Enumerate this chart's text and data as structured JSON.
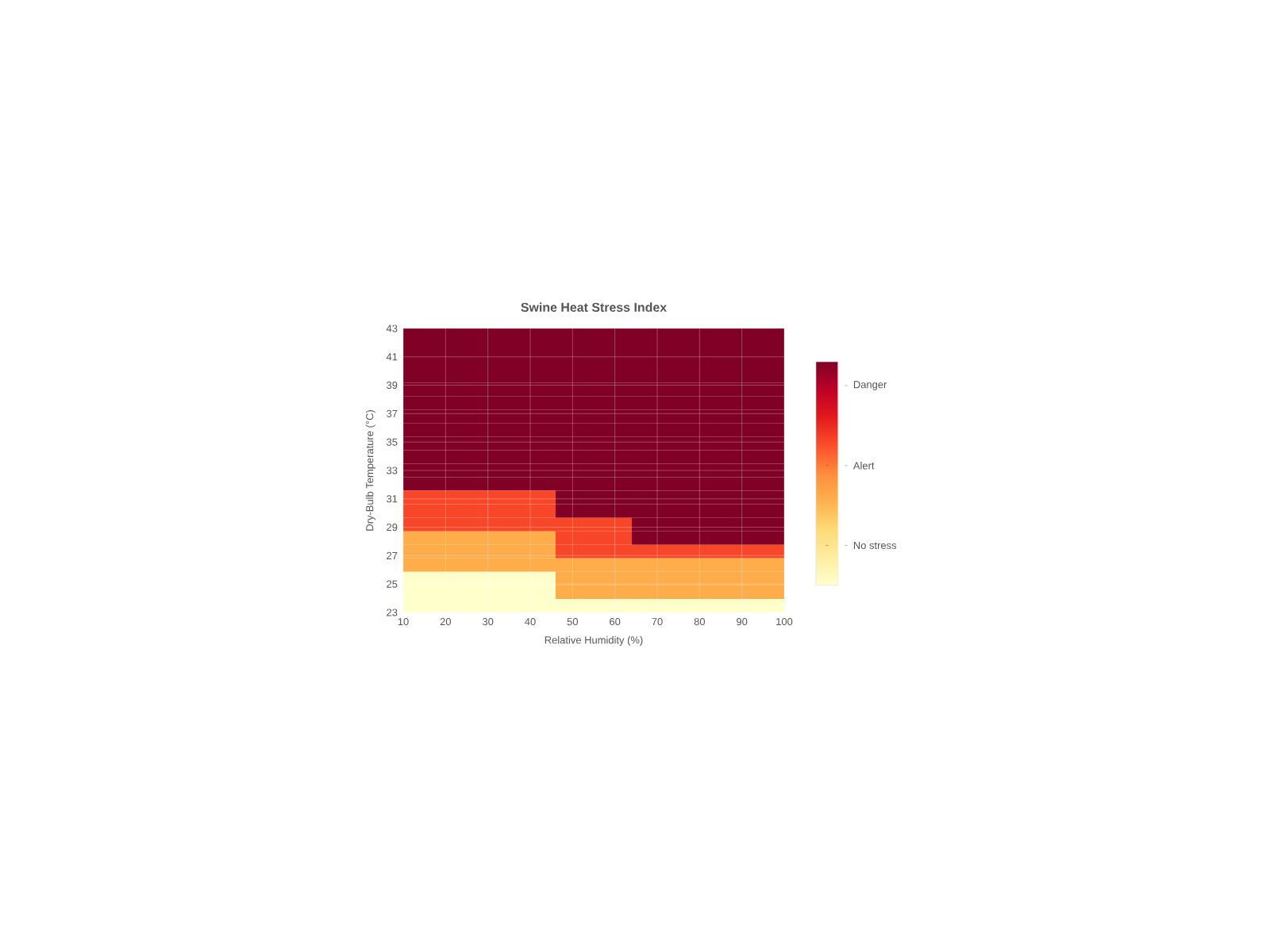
{
  "chart_data": {
    "type": "heatmap",
    "title": "Swine Heat Stress Index",
    "xlabel": "Relative Humidity (%)",
    "ylabel": "Dry-Bulb Temperature (°C)",
    "x": [
      19,
      37,
      55,
      73,
      91
    ],
    "xlim": [
      10,
      100
    ],
    "ylim": [
      23,
      43
    ],
    "xticks": [
      10,
      20,
      30,
      40,
      50,
      60,
      70,
      80,
      90,
      100
    ],
    "yticks": [
      23,
      25,
      27,
      29,
      31,
      33,
      35,
      37,
      39,
      41,
      43
    ],
    "grid": true,
    "clim": [
      0.5,
      3.3
    ],
    "cticks": [
      {
        "value": 1,
        "label": "No stress"
      },
      {
        "value": 2,
        "label": "Alert"
      },
      {
        "value": 3,
        "label": "Danger"
      }
    ],
    "cells": [
      [
        3.3,
        3.3,
        3.3,
        3.3,
        3.3
      ],
      [
        3.3,
        3.3,
        3.3,
        3.3,
        3.3
      ],
      [
        3.3,
        3.3,
        3.3,
        3.3,
        3.3
      ],
      [
        3.3,
        3.3,
        3.3,
        3.3,
        3.3
      ],
      [
        3.3,
        3.3,
        3.3,
        3.3,
        3.3
      ],
      [
        3.3,
        3.3,
        3.3,
        3.3,
        3.3
      ],
      [
        3.3,
        3.3,
        3.3,
        3.3,
        3.3
      ],
      [
        3.3,
        3.3,
        3.3,
        3.3,
        3.3
      ],
      [
        3.3,
        3.3,
        3.3,
        3.3,
        3.3
      ],
      [
        3.3,
        3.3,
        3.3,
        3.3,
        3.3
      ],
      [
        3.3,
        3.3,
        3.3,
        3.3,
        3.3
      ],
      [
        3.3,
        3.3,
        3.3,
        3.3,
        3.3
      ],
      [
        2.3,
        2.3,
        3.3,
        3.3,
        3.3
      ],
      [
        2.3,
        2.3,
        3.3,
        3.3,
        3.3
      ],
      [
        2.3,
        2.3,
        2.3,
        3.3,
        3.3
      ],
      [
        1.6,
        1.6,
        2.3,
        3.3,
        3.3
      ],
      [
        1.6,
        1.6,
        2.3,
        2.3,
        2.3
      ],
      [
        1.6,
        1.6,
        1.6,
        1.6,
        1.6
      ],
      [
        0.5,
        0.5,
        1.6,
        1.6,
        1.6
      ],
      [
        0.5,
        0.5,
        1.6,
        1.6,
        1.6
      ],
      [
        0.5,
        0.5,
        0.5,
        0.5,
        0.5
      ]
    ]
  }
}
